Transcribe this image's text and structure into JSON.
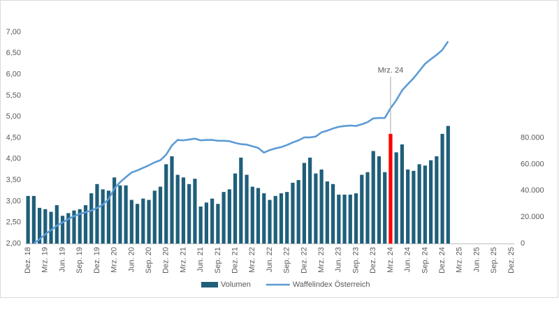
{
  "chart_data": {
    "type": "combo",
    "categories": [
      "Dez. 18",
      null,
      null,
      "Mrz. 19",
      null,
      null,
      "Jun. 19",
      null,
      null,
      "Sep. 19",
      null,
      null,
      "Dez. 19",
      null,
      null,
      "Mrz. 20",
      null,
      null,
      "Jun. 20",
      null,
      null,
      "Sep. 20",
      null,
      null,
      "Dez. 20",
      null,
      null,
      "Mrz. 21",
      null,
      null,
      "Jun. 21",
      null,
      null,
      "Sep. 21",
      null,
      null,
      "Dez. 21",
      null,
      null,
      "Mrz. 22",
      null,
      null,
      "Jun. 22",
      null,
      null,
      "Sep. 22",
      null,
      null,
      "Dez. 22",
      null,
      null,
      "Mrz. 23",
      null,
      null,
      "Jun. 23",
      null,
      null,
      "Sep. 23",
      null,
      null,
      "Dez. 23",
      null,
      null,
      "Mrz. 24",
      null,
      null,
      "Jun. 24",
      null,
      null,
      "Sep. 24",
      null,
      null,
      "Dez. 24",
      null,
      null,
      "Mrz. 25",
      null,
      null,
      "Jun. 25",
      null,
      null,
      "Sep. 25",
      null,
      null,
      "Dez. 25"
    ],
    "series": [
      {
        "name": "Volumen",
        "type": "bar",
        "axis": "y2",
        "color": "#1f5f7a",
        "highlight": {
          "index": 63,
          "color": "#ff0000"
        },
        "values": [
          36000,
          36000,
          27000,
          26000,
          24000,
          29000,
          21000,
          23000,
          25000,
          26000,
          29000,
          38000,
          45000,
          41000,
          40000,
          50000,
          44000,
          44000,
          33000,
          30000,
          34000,
          33000,
          40000,
          43000,
          60000,
          66000,
          52000,
          50000,
          45000,
          49000,
          28000,
          31000,
          34000,
          30000,
          39000,
          41000,
          53000,
          65000,
          52000,
          43000,
          42000,
          38000,
          33000,
          36000,
          38000,
          39000,
          46000,
          48000,
          61000,
          65000,
          53000,
          56000,
          47000,
          45000,
          37000,
          37000,
          37000,
          38000,
          52000,
          54000,
          70000,
          66000,
          54000,
          83000,
          69000,
          75000,
          56000,
          55000,
          60000,
          59000,
          63000,
          66000,
          83000,
          89000,
          null,
          null,
          null,
          null,
          null,
          null,
          null,
          null,
          null,
          null,
          null
        ]
      },
      {
        "name": "Waffelindex Österreich",
        "type": "line",
        "color": "#5b9bd5",
        "values": [
          null,
          2.0,
          2.1,
          2.22,
          2.32,
          2.42,
          2.5,
          2.58,
          2.65,
          2.7,
          2.74,
          2.78,
          2.84,
          2.92,
          3.05,
          3.3,
          3.45,
          3.57,
          3.68,
          3.73,
          3.79,
          3.85,
          3.92,
          3.97,
          4.1,
          4.32,
          4.45,
          4.44,
          4.46,
          4.48,
          4.44,
          4.45,
          4.45,
          4.43,
          4.43,
          4.42,
          4.38,
          4.35,
          4.34,
          4.3,
          4.26,
          4.15,
          4.21,
          4.25,
          4.28,
          4.33,
          4.39,
          4.44,
          4.51,
          4.51,
          4.53,
          4.63,
          4.67,
          4.72,
          4.76,
          4.78,
          4.79,
          4.78,
          4.82,
          4.87,
          4.96,
          4.97,
          4.97,
          5.2,
          5.39,
          5.62,
          5.77,
          5.91,
          6.08,
          6.25,
          6.36,
          6.46,
          6.58,
          6.78,
          null,
          null,
          null,
          null,
          null,
          null,
          null,
          null,
          null,
          null,
          null
        ]
      }
    ],
    "ylim": [
      2,
      7
    ],
    "yticks": [
      {
        "value": 2,
        "label": "2,00"
      },
      {
        "value": 2.5,
        "label": "2,50"
      },
      {
        "value": 3,
        "label": "3,00"
      },
      {
        "value": 3.5,
        "label": "3,50"
      },
      {
        "value": 4,
        "label": "4,00"
      },
      {
        "value": 4.5,
        "label": "4,50"
      },
      {
        "value": 5,
        "label": "5,00"
      },
      {
        "value": 5.5,
        "label": "5,50"
      },
      {
        "value": 6,
        "label": "6,00"
      },
      {
        "value": 6.5,
        "label": "6,50"
      },
      {
        "value": 7,
        "label": "7,00"
      }
    ],
    "y2lim": [
      0,
      160000
    ],
    "y2ticks": [
      0,
      {
        "value": 20000,
        "label": "20.000"
      },
      {
        "value": 40000,
        "label": "40.000"
      },
      {
        "value": 60000,
        "label": "60.000"
      },
      {
        "value": 80000,
        "label": "80.000"
      }
    ],
    "annotations": [
      {
        "text": "Mrz. 24",
        "index": 63
      }
    ],
    "legend": "bottom",
    "grid": false
  }
}
